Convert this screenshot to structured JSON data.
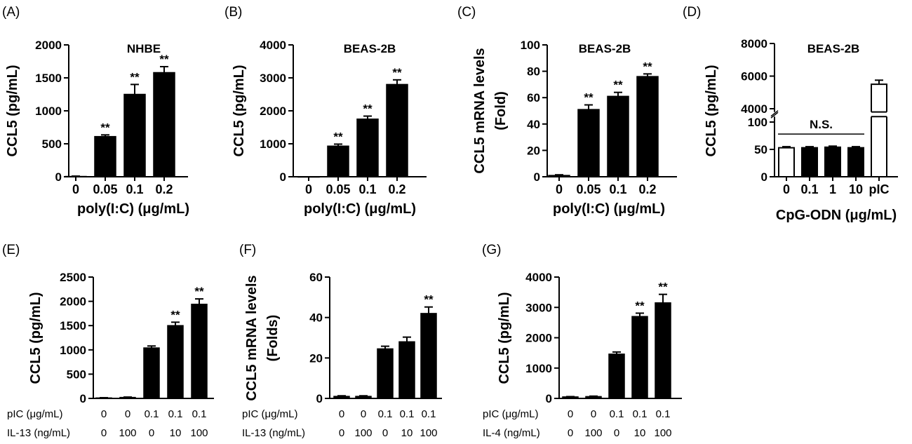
{
  "chart_data": [
    {
      "panel": "(A)",
      "type": "bar",
      "title": "NHBE",
      "ylabel": "CCL5 (pg/mL)",
      "xlabel": "poly(I:C) (μg/mL)",
      "categories": [
        "0",
        "0.05",
        "0.1",
        "0.2"
      ],
      "values": [
        5,
        610,
        1250,
        1580
      ],
      "errors": [
        5,
        25,
        150,
        90
      ],
      "significance": [
        "",
        "**",
        "**",
        "**"
      ],
      "ylim": [
        0,
        2000
      ],
      "yticks": [
        "0",
        "500",
        "1000",
        "1500",
        "2000"
      ],
      "bar_fill": [
        "#000000",
        "#000000",
        "#000000",
        "#000000"
      ]
    },
    {
      "panel": "(B)",
      "type": "bar",
      "title": "BEAS-2B",
      "ylabel": "CCL5 (pg/mL)",
      "xlabel": "poly(I:C) (μg/mL)",
      "categories": [
        "0",
        "0.05",
        "0.1",
        "0.2"
      ],
      "values": [
        0,
        930,
        1750,
        2800
      ],
      "errors": [
        0,
        60,
        90,
        140
      ],
      "significance": [
        "",
        "**",
        "**",
        "**"
      ],
      "ylim": [
        0,
        4000
      ],
      "yticks": [
        "0",
        "1000",
        "2000",
        "3000",
        "4000"
      ],
      "bar_fill": [
        "#000000",
        "#000000",
        "#000000",
        "#000000"
      ]
    },
    {
      "panel": "(C)",
      "type": "bar",
      "title": "BEAS-2B",
      "ylabel": [
        "CCL5 mRNA levels",
        "(Fold)"
      ],
      "xlabel": "poly(I:C) (μg/mL)",
      "categories": [
        "0",
        "0.05",
        "0.1",
        "0.2"
      ],
      "values": [
        1,
        51,
        61,
        76
      ],
      "errors": [
        0.5,
        3.5,
        3,
        2
      ],
      "significance": [
        "",
        "**",
        "**",
        "**"
      ],
      "ylim": [
        0,
        100
      ],
      "yticks": [
        "0",
        "20",
        "40",
        "60",
        "80",
        "100"
      ],
      "bar_fill": [
        "#000000",
        "#000000",
        "#000000",
        "#000000"
      ]
    },
    {
      "panel": "(D)",
      "type": "bar",
      "title": "BEAS-2B",
      "ylabel": "CCL5 (pg/mL)",
      "xlabel": "CpG-ODN (μg/mL)",
      "categories": [
        "0",
        "0.1",
        "1",
        "10",
        "pIC"
      ],
      "values": [
        53,
        53,
        54,
        53,
        5500
      ],
      "errors": [
        2,
        2,
        2,
        2,
        250
      ],
      "significance": [],
      "annotation": "N.S.",
      "yticks_lower": [
        "0",
        "50",
        "100"
      ],
      "yticks_upper": [
        "4000",
        "6000",
        "8000"
      ],
      "broken_axis": true,
      "bar_fill": [
        "#ffffff",
        "#000000",
        "#000000",
        "#000000",
        "#ffffff"
      ]
    },
    {
      "panel": "(E)",
      "type": "bar",
      "ylabel": "CCL5 (pg/mL)",
      "table_rows": [
        {
          "label": "pIC (μg/mL)",
          "values": [
            "0",
            "0",
            "0.1",
            "0.1",
            "0.1"
          ]
        },
        {
          "label": "IL-13 (ng/mL)",
          "values": [
            "0",
            "100",
            "0",
            "10",
            "100"
          ]
        }
      ],
      "values": [
        10,
        20,
        1040,
        1500,
        1940
      ],
      "errors": [
        5,
        8,
        40,
        70,
        110
      ],
      "significance": [
        "",
        "",
        "",
        "**",
        "**"
      ],
      "ylim": [
        0,
        2500
      ],
      "yticks": [
        "0",
        "500",
        "1000",
        "1500",
        "2000",
        "2500"
      ],
      "bar_fill": [
        "#000000",
        "#000000",
        "#000000",
        "#000000",
        "#000000"
      ]
    },
    {
      "panel": "(F)",
      "type": "bar",
      "ylabel": [
        "CCL5 mRNA levels",
        "(Folds)"
      ],
      "table_rows": [
        {
          "label": "pIC (μg/mL)",
          "values": [
            "0",
            "0",
            "0.1",
            "0.1",
            "0.1"
          ]
        },
        {
          "label": "IL-13 (ng/mL)",
          "values": [
            "0",
            "100",
            "0",
            "10",
            "100"
          ]
        }
      ],
      "values": [
        1,
        1,
        24.5,
        28,
        42
      ],
      "errors": [
        0.3,
        0.3,
        1.3,
        2.3,
        3.2
      ],
      "significance": [
        "",
        "",
        "",
        "",
        "**"
      ],
      "ylim": [
        0,
        60
      ],
      "yticks": [
        "0",
        "20",
        "40",
        "60"
      ],
      "bar_fill": [
        "#000000",
        "#000000",
        "#000000",
        "#000000",
        "#000000"
      ]
    },
    {
      "panel": "(G)",
      "type": "bar",
      "ylabel": "CCL5 (pg/mL)",
      "table_rows": [
        {
          "label": "pIC (μg/mL)",
          "values": [
            "0",
            "0",
            "0.1",
            "0.1",
            "0.1"
          ]
        },
        {
          "label": "IL-4 (ng/mL)",
          "values": [
            "0",
            "100",
            "0",
            "10",
            "100"
          ]
        }
      ],
      "values": [
        50,
        60,
        1460,
        2700,
        3150
      ],
      "errors": [
        10,
        15,
        70,
        110,
        280
      ],
      "significance": [
        "",
        "",
        "",
        "**",
        "**"
      ],
      "ylim": [
        0,
        4000
      ],
      "yticks": [
        "0",
        "1000",
        "2000",
        "3000",
        "4000"
      ],
      "bar_fill": [
        "#000000",
        "#000000",
        "#000000",
        "#000000",
        "#000000"
      ]
    }
  ]
}
